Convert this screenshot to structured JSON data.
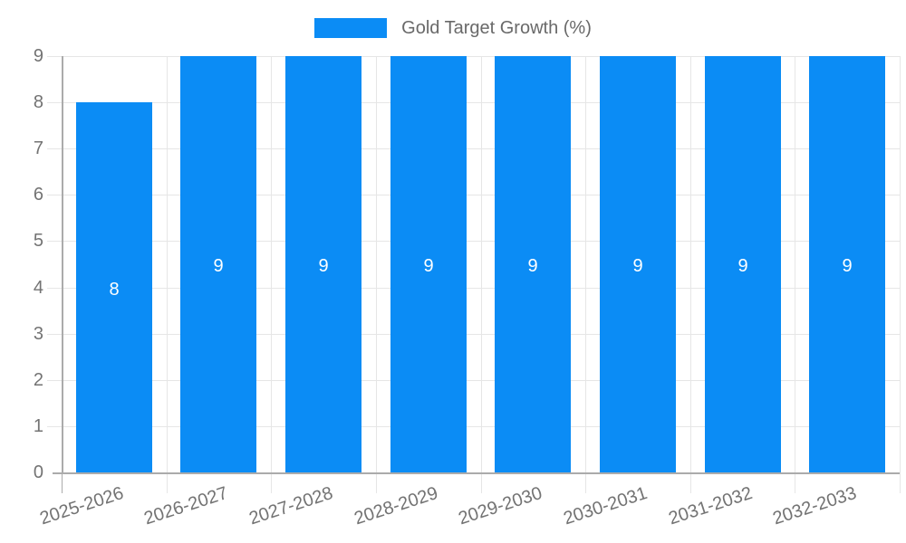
{
  "chart_data": {
    "type": "bar",
    "title": "Gold Target Growth (%)",
    "categories": [
      "2025-2026",
      "2026-2027",
      "2027-2028",
      "2028-2029",
      "2029-2030",
      "2030-2031",
      "2031-2032",
      "2032-2033"
    ],
    "values": [
      8,
      9,
      9,
      9,
      9,
      9,
      9,
      9
    ],
    "value_labels": [
      "8",
      "9",
      "9",
      "9",
      "9",
      "9",
      "9",
      "9"
    ],
    "xlabel": "",
    "ylabel": "",
    "ylim": [
      0,
      9
    ],
    "ytick_labels": [
      "0",
      "1",
      "2",
      "3",
      "4",
      "5",
      "6",
      "7",
      "8",
      "9"
    ],
    "grid": true,
    "legend_position": "top",
    "x_label_rotation_deg": -18
  },
  "colors": {
    "bar": "#0b8cf5",
    "axis": "#ababab",
    "grid": "#e6e6e6",
    "tick_text": "#737373",
    "legend_text": "#696969",
    "value_label": "#ffffff",
    "background": "#ffffff"
  }
}
